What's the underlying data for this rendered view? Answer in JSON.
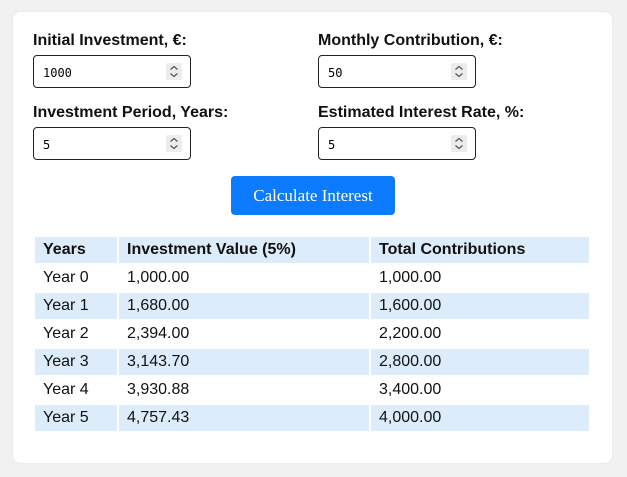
{
  "form": {
    "initial_investment": {
      "label": "Initial Investment, €:",
      "value": "1000"
    },
    "monthly_contribution": {
      "label": "Monthly Contribution, €:",
      "value": "50"
    },
    "investment_period": {
      "label": "Investment Period, Years:",
      "value": "5"
    },
    "interest_rate": {
      "label": "Estimated Interest Rate, %:",
      "value": "5"
    }
  },
  "calculate_button": {
    "label": "Calculate Interest",
    "color": "#0d7bff"
  },
  "table": {
    "headers": [
      "Years",
      "Investment Value (5%)",
      "Total Contributions"
    ],
    "rows": [
      [
        "Year 0",
        "1,000.00",
        "1,000.00"
      ],
      [
        "Year 1",
        "1,680.00",
        "1,600.00"
      ],
      [
        "Year 2",
        "2,394.00",
        "2,200.00"
      ],
      [
        "Year 3",
        "3,143.70",
        "2,800.00"
      ],
      [
        "Year 4",
        "3,930.88",
        "3,400.00"
      ],
      [
        "Year 5",
        "4,757.43",
        "4,000.00"
      ]
    ],
    "stripe_color": "#dcecfb"
  }
}
